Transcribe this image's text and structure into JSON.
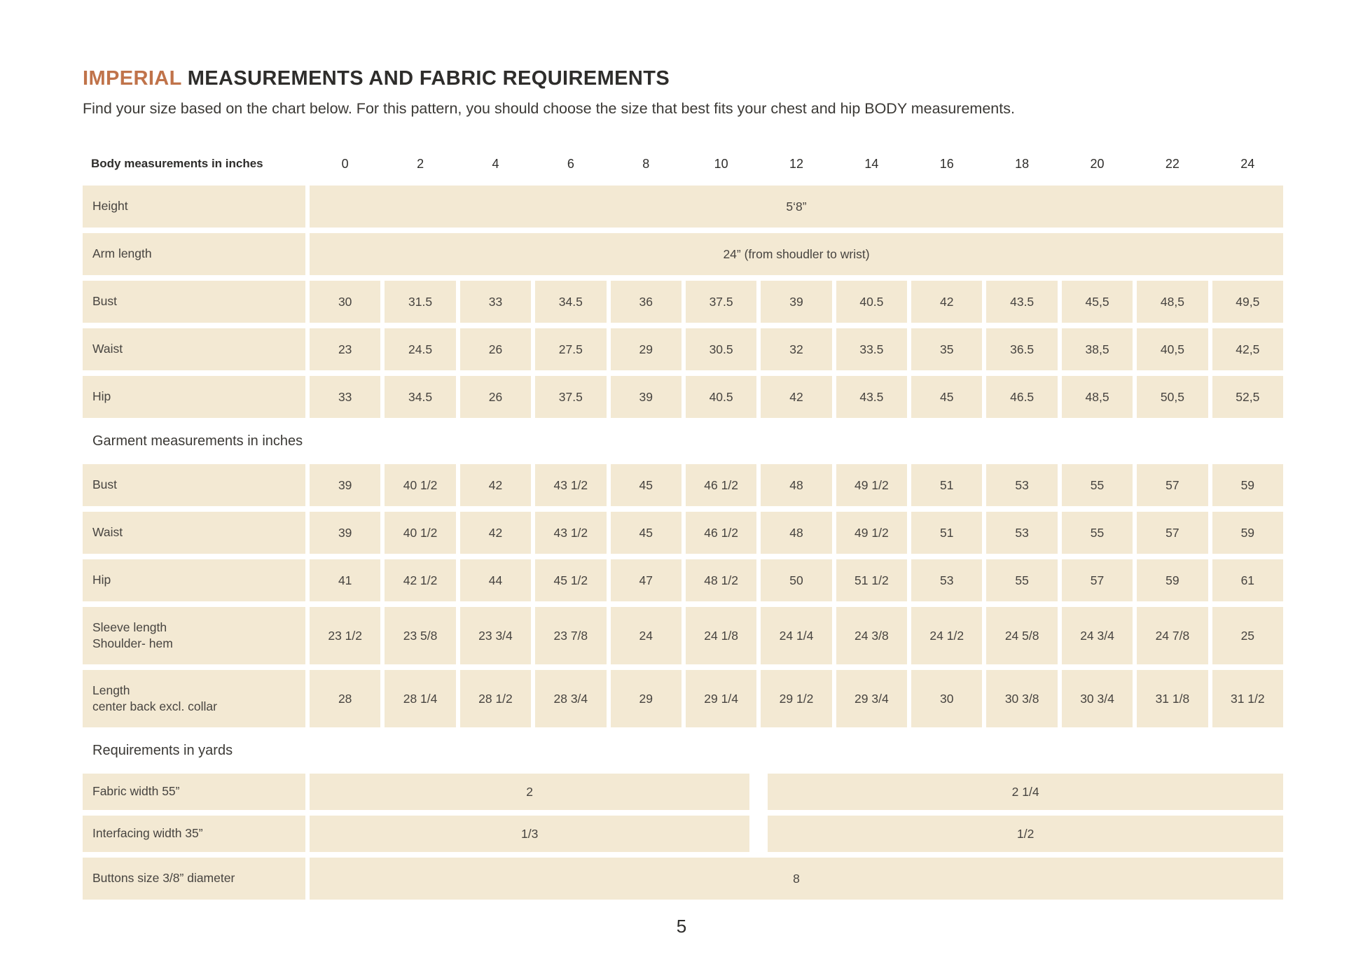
{
  "page": {
    "title_accent": "IMPERIAL",
    "title_rest": " MEASUREMENTS AND FABRIC REQUIREMENTS",
    "intro": "Find your size based on the chart below. For this pattern, you should choose the size that best fits your chest and hip BODY measurements.",
    "page_number": "5"
  },
  "colors": {
    "accent_orange": "#c0734a",
    "cell_cream": "#f3e9d3",
    "text_dark": "#2e2d2b"
  },
  "table": {
    "header_label": "Body measurements in inches",
    "sizes": [
      "0",
      "2",
      "4",
      "6",
      "8",
      "10",
      "12",
      "14",
      "16",
      "18",
      "20",
      "22",
      "24"
    ],
    "rows": [
      {
        "type": "span",
        "label": "Height",
        "value": "5‘8”"
      },
      {
        "type": "span",
        "label": "Arm length",
        "value": "24” (from shoudler to wrist)"
      },
      {
        "type": "cells",
        "label": "Bust",
        "values": [
          "30",
          "31.5",
          "33",
          "34.5",
          "36",
          "37.5",
          "39",
          "40.5",
          "42",
          "43.5",
          "45,5",
          "48,5",
          "49,5"
        ]
      },
      {
        "type": "cells",
        "label": "Waist",
        "values": [
          "23",
          "24.5",
          "26",
          "27.5",
          "29",
          "30.5",
          "32",
          "33.5",
          "35",
          "36.5",
          "38,5",
          "40,5",
          "42,5"
        ]
      },
      {
        "type": "cells",
        "label": "Hip",
        "values": [
          "33",
          "34.5",
          "26",
          "37.5",
          "39",
          "40.5",
          "42",
          "43.5",
          "45",
          "46.5",
          "48,5",
          "50,5",
          "52,5"
        ]
      },
      {
        "type": "section",
        "label": "Garment measurements in inches"
      },
      {
        "type": "cells",
        "label": "Bust",
        "values": [
          "39",
          "40 1/2",
          "42",
          "43 1/2",
          "45",
          "46 1/2",
          "48",
          "49 1/2",
          "51",
          "53",
          "55",
          "57",
          "59"
        ]
      },
      {
        "type": "cells",
        "label": "Waist",
        "values": [
          "39",
          "40 1/2",
          "42",
          "43 1/2",
          "45",
          "46 1/2",
          "48",
          "49 1/2",
          "51",
          "53",
          "55",
          "57",
          "59"
        ]
      },
      {
        "type": "cells",
        "label": "Hip",
        "values": [
          "41",
          "42 1/2",
          "44",
          "45 1/2",
          "47",
          "48 1/2",
          "50",
          "51 1/2",
          "53",
          "55",
          "57",
          "59",
          "61"
        ]
      },
      {
        "type": "cells",
        "label": "Sleeve length",
        "label2": "Shoulder- hem",
        "values": [
          "23 1/2",
          "23 5/8",
          "23 3/4",
          "23 7/8",
          "24",
          "24 1/8",
          "24 1/4",
          "24 3/8",
          "24 1/2",
          "24 5/8",
          "24 3/4",
          "24 7/8",
          "25"
        ]
      },
      {
        "type": "cells",
        "label": "Length",
        "label2": "center back excl. collar",
        "values": [
          "28",
          "28 1/4",
          "28 1/2",
          "28 3/4",
          "29",
          "29 1/4",
          "29 1/2",
          "29 3/4",
          "30",
          "30 3/8",
          "30 3/4",
          "31 1/8",
          "31 1/2"
        ]
      },
      {
        "type": "section",
        "label": "Requirements in yards"
      },
      {
        "type": "split",
        "label": "Fabric width 55”",
        "value_left": "2",
        "value_right": "2 1/4"
      },
      {
        "type": "split",
        "label": "Interfacing width 35”",
        "value_left": "1/3",
        "value_right": "1/2"
      },
      {
        "type": "span",
        "label": "Buttons size 3/8” diameter",
        "value": "8"
      }
    ]
  }
}
